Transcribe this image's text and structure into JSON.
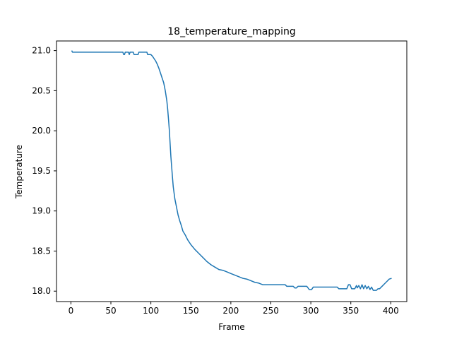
{
  "chart_data": {
    "type": "line",
    "title": "18_temperature_mapping",
    "xlabel": "Frame",
    "ylabel": "Temperature",
    "xlim": [
      -18,
      420
    ],
    "ylim": [
      17.87,
      21.12
    ],
    "xticks": [
      0,
      50,
      100,
      150,
      200,
      250,
      300,
      350,
      400
    ],
    "yticks": [
      18.0,
      18.5,
      19.0,
      19.5,
      20.0,
      20.5,
      21.0
    ],
    "ytick_labels": [
      "18.0",
      "18.5",
      "19.0",
      "19.5",
      "20.0",
      "20.5",
      "21.0"
    ],
    "grid": false,
    "legend": "none",
    "series": [
      {
        "color": "#1f77b4",
        "points": [
          [
            1,
            21.0
          ],
          [
            2,
            20.98
          ],
          [
            10,
            20.98
          ],
          [
            30,
            20.98
          ],
          [
            50,
            20.98
          ],
          [
            65,
            20.98
          ],
          [
            66,
            20.95
          ],
          [
            67,
            20.95
          ],
          [
            68,
            20.98
          ],
          [
            72,
            20.98
          ],
          [
            73,
            20.95
          ],
          [
            74,
            20.98
          ],
          [
            78,
            20.98
          ],
          [
            79,
            20.95
          ],
          [
            84,
            20.95
          ],
          [
            85,
            20.98
          ],
          [
            95,
            20.98
          ],
          [
            96,
            20.95
          ],
          [
            100,
            20.95
          ],
          [
            102,
            20.93
          ],
          [
            104,
            20.9
          ],
          [
            106,
            20.87
          ],
          [
            108,
            20.83
          ],
          [
            110,
            20.78
          ],
          [
            112,
            20.72
          ],
          [
            114,
            20.66
          ],
          [
            116,
            20.6
          ],
          [
            118,
            20.5
          ],
          [
            120,
            20.37
          ],
          [
            121,
            20.27
          ],
          [
            122,
            20.15
          ],
          [
            123,
            20.02
          ],
          [
            124,
            19.85
          ],
          [
            125,
            19.68
          ],
          [
            126,
            19.55
          ],
          [
            127,
            19.42
          ],
          [
            128,
            19.3
          ],
          [
            130,
            19.15
          ],
          [
            132,
            19.05
          ],
          [
            134,
            18.95
          ],
          [
            136,
            18.88
          ],
          [
            138,
            18.82
          ],
          [
            140,
            18.75
          ],
          [
            143,
            18.7
          ],
          [
            146,
            18.64
          ],
          [
            150,
            18.58
          ],
          [
            155,
            18.52
          ],
          [
            160,
            18.47
          ],
          [
            165,
            18.42
          ],
          [
            170,
            18.37
          ],
          [
            175,
            18.33
          ],
          [
            180,
            18.3
          ],
          [
            185,
            18.27
          ],
          [
            190,
            18.26
          ],
          [
            195,
            18.24
          ],
          [
            200,
            18.22
          ],
          [
            205,
            18.2
          ],
          [
            210,
            18.18
          ],
          [
            215,
            18.16
          ],
          [
            220,
            18.15
          ],
          [
            225,
            18.13
          ],
          [
            230,
            18.11
          ],
          [
            235,
            18.1
          ],
          [
            240,
            18.08
          ],
          [
            250,
            18.08
          ],
          [
            260,
            18.08
          ],
          [
            268,
            18.08
          ],
          [
            270,
            18.06
          ],
          [
            278,
            18.06
          ],
          [
            280,
            18.04
          ],
          [
            282,
            18.04
          ],
          [
            284,
            18.06
          ],
          [
            295,
            18.06
          ],
          [
            298,
            18.02
          ],
          [
            301,
            18.02
          ],
          [
            303,
            18.05
          ],
          [
            320,
            18.05
          ],
          [
            333,
            18.05
          ],
          [
            335,
            18.03
          ],
          [
            345,
            18.03
          ],
          [
            347,
            18.08
          ],
          [
            349,
            18.08
          ],
          [
            351,
            18.03
          ],
          [
            355,
            18.03
          ],
          [
            357,
            18.07
          ],
          [
            358,
            18.04
          ],
          [
            360,
            18.07
          ],
          [
            362,
            18.03
          ],
          [
            364,
            18.08
          ],
          [
            366,
            18.03
          ],
          [
            368,
            18.07
          ],
          [
            370,
            18.03
          ],
          [
            372,
            18.06
          ],
          [
            374,
            18.02
          ],
          [
            376,
            18.05
          ],
          [
            378,
            18.01
          ],
          [
            382,
            18.01
          ],
          [
            384,
            18.03
          ],
          [
            386,
            18.03
          ],
          [
            388,
            18.05
          ],
          [
            390,
            18.07
          ],
          [
            392,
            18.09
          ],
          [
            394,
            18.11
          ],
          [
            396,
            18.13
          ],
          [
            398,
            18.15
          ],
          [
            401,
            18.16
          ]
        ]
      }
    ]
  }
}
